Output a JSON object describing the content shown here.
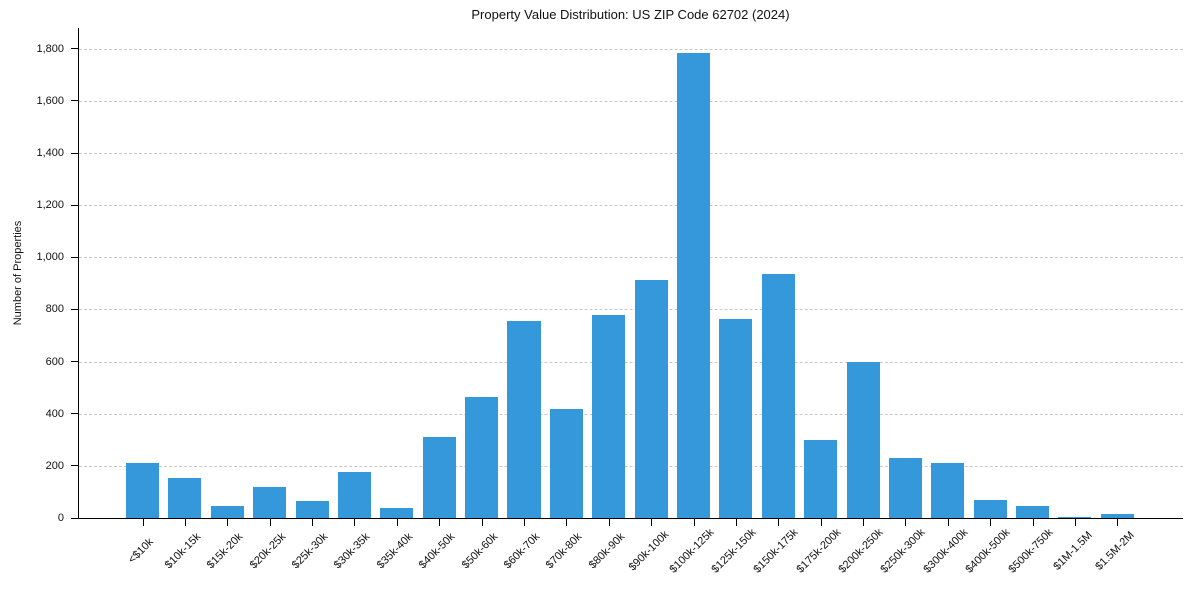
{
  "chart_data": {
    "type": "bar",
    "title": "Property Value Distribution: US ZIP Code 62702 (2024)",
    "xlabel": "",
    "ylabel": "Number of Properties",
    "categories": [
      "<$10k",
      "$10k-15k",
      "$15k-20k",
      "$20k-25k",
      "$25k-30k",
      "$30k-35k",
      "$35k-40k",
      "$40k-50k",
      "$50k-60k",
      "$60k-70k",
      "$70k-80k",
      "$80k-90k",
      "$90k-100k",
      "$100k-125k",
      "$125k-150k",
      "$150k-175k",
      "$175k-200k",
      "$200k-250k",
      "$250k-300k",
      "$300k-400k",
      "$400k-500k",
      "$500k-750k",
      "$1M-1.5M",
      "$1.5M-2M"
    ],
    "values": [
      210,
      155,
      45,
      120,
      65,
      175,
      40,
      310,
      465,
      755,
      420,
      780,
      915,
      1785,
      765,
      935,
      300,
      600,
      230,
      210,
      70,
      45,
      2,
      15
    ],
    "yticks": [
      0,
      200,
      400,
      600,
      800,
      1000,
      1200,
      1400,
      1600,
      1800
    ],
    "ytick_labels": [
      "0",
      "200",
      "400",
      "600",
      "800",
      "1,000",
      "1,200",
      "1,400",
      "1,600",
      "1,800"
    ],
    "ylim": [
      0,
      1880
    ],
    "grid": "horizontal-dashed",
    "legend": "none",
    "bar_color": "#3498db",
    "grid_color": "#c8c8c8",
    "axis_color": "#000000",
    "background": "#ffffff"
  }
}
